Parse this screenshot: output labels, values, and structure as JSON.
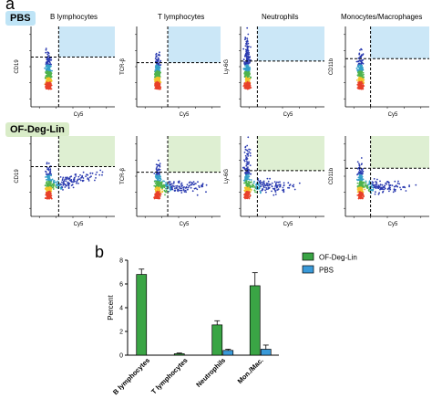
{
  "panel_a_label": "a",
  "panel_b_label": "b",
  "rows": [
    {
      "label": "PBS",
      "quadrant_color": "#cbe7f7"
    },
    {
      "label": "OF-Deg-Lin",
      "quadrant_color": "#deefd2"
    }
  ],
  "columns": [
    {
      "title": "B lymphocytes",
      "ylabel": "CD19",
      "xlabel": "Cy5"
    },
    {
      "title": "T lymphocytes",
      "ylabel": "TCR-β",
      "xlabel": "Cy5"
    },
    {
      "title": "Neutrophils",
      "ylabel": "Ly-6G",
      "xlabel": "Cy5"
    },
    {
      "title": "Monocytes/Macrophages",
      "ylabel": "CD11b",
      "xlabel": "Cy5"
    }
  ],
  "chart_data": [
    {
      "type": "scatter",
      "title": "",
      "description_visible": "Flow cytometry density plots (4 populations × 2 treatments) with quadrant gates; upper-right quadrant shaded.",
      "row_labels": [
        "PBS",
        "OF-Deg-Lin"
      ],
      "column_titles": [
        "B lymphocytes",
        "T lymphocytes",
        "Neutrophils",
        "Monocytes/Macrophages"
      ],
      "xlabel": "Cy5",
      "ylabels": [
        "CD19",
        "TCR-β",
        "Ly-6G",
        "CD11b"
      ]
    },
    {
      "type": "bar",
      "categories": [
        "B lymphocytes",
        "T lymphocytes",
        "Neutrophils",
        "Mon./Mac."
      ],
      "series": [
        {
          "name": "OF-Deg-Lin",
          "color": "#3aa545",
          "values": [
            6.8,
            0.12,
            2.55,
            5.85
          ],
          "errors": [
            0.45,
            0.06,
            0.35,
            1.1
          ]
        },
        {
          "name": "PBS",
          "color": "#3a9ad9",
          "values": [
            0.0,
            0.0,
            0.4,
            0.5
          ],
          "errors": [
            0.0,
            0.0,
            0.1,
            0.35
          ]
        }
      ],
      "ylabel": "Percent",
      "xlabel": "",
      "ylim": [
        0,
        8
      ],
      "yticks": [
        0,
        2,
        4,
        6,
        8
      ],
      "legend": "top-right"
    }
  ]
}
